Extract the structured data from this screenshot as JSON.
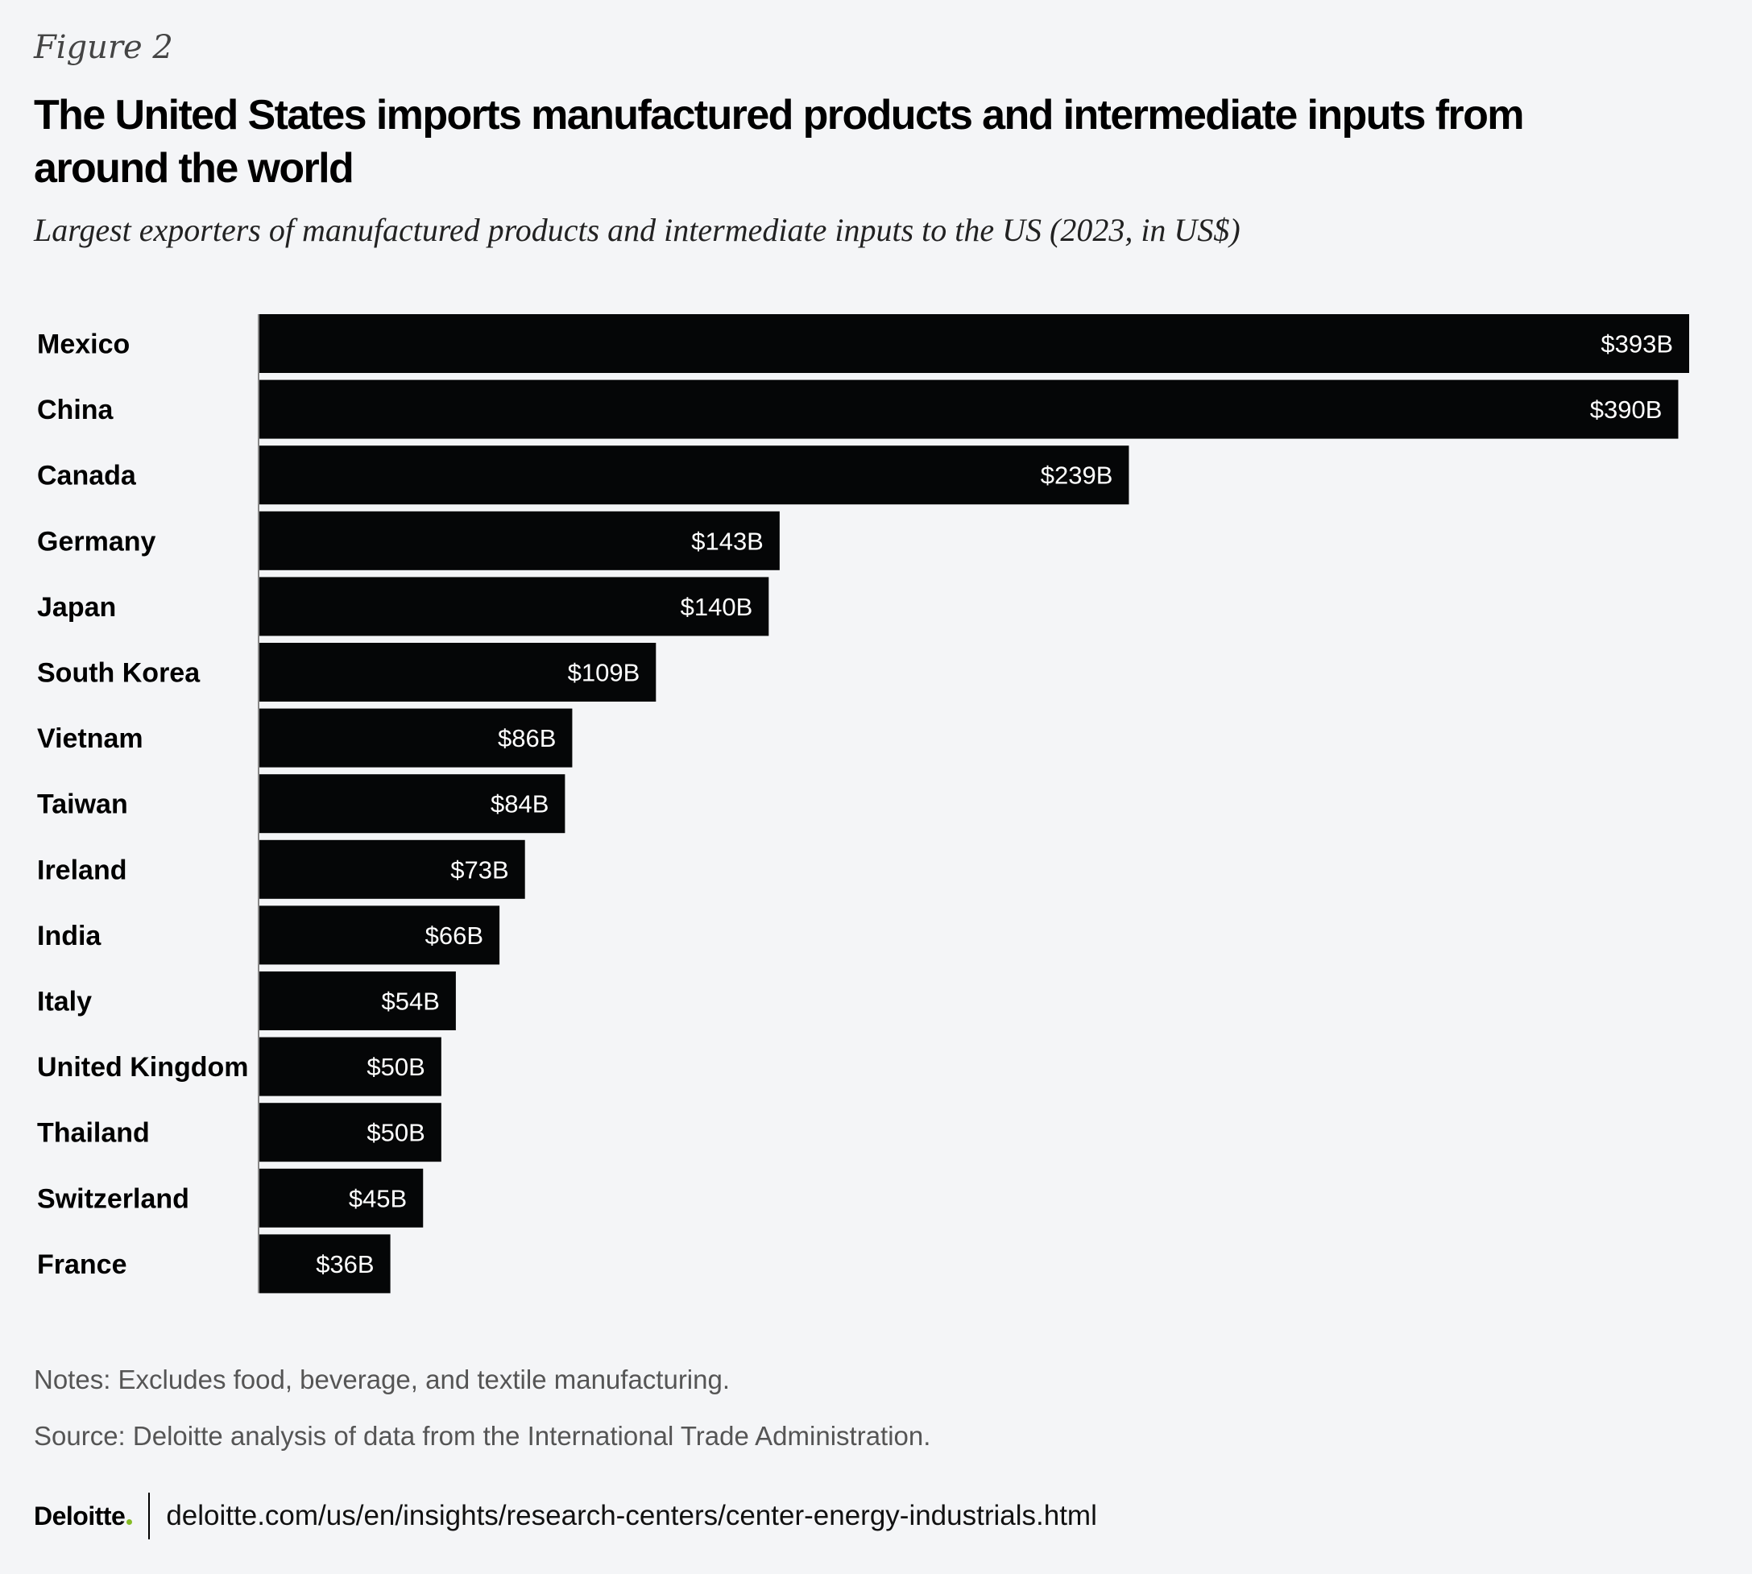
{
  "figure_label": "Figure 2",
  "title": "The United States imports manufactured products and intermediate inputs from around the world",
  "subtitle": "Largest exporters of manufactured products and intermediate inputs to the US (2023, in US$)",
  "chart_data": {
    "type": "bar",
    "orientation": "horizontal",
    "title": "The United States imports manufactured products and intermediate inputs from around the world",
    "subtitle": "Largest exporters of manufactured products and intermediate inputs to the US (2023, in US$)",
    "categories": [
      "Mexico",
      "China",
      "Canada",
      "Germany",
      "Japan",
      "South Korea",
      "Vietnam",
      "Taiwan",
      "Ireland",
      "India",
      "Italy",
      "United Kingdom",
      "Thailand",
      "Switzerland",
      "France"
    ],
    "values": [
      393,
      390,
      239,
      143,
      140,
      109,
      86,
      84,
      73,
      66,
      54,
      50,
      50,
      45,
      36
    ],
    "value_labels": [
      "$393B",
      "$390B",
      "$239B",
      "$143B",
      "$140B",
      "$109B",
      "$86B",
      "$84B",
      "$73B",
      "$66B",
      "$54B",
      "$50B",
      "$50B",
      "$45B",
      "$36B"
    ],
    "unit": "US$ billions",
    "xlim": [
      0,
      393
    ],
    "xlabel": "",
    "ylabel": "",
    "grid": false,
    "legend": "none",
    "bar_color": "#050607",
    "label_color": "#ffffff"
  },
  "notes": "Notes: Excludes food, beverage, and textile manufacturing.",
  "source": "Source: Deloitte analysis of data from the International Trade Administration.",
  "footer": {
    "logo": "Deloitte",
    "url": "deloitte.com/us/en/insights/research-centers/center-energy-industrials.html"
  },
  "colors": {
    "background": "#f4f5f7",
    "bar": "#050607",
    "brand_dot": "#86bc25"
  }
}
